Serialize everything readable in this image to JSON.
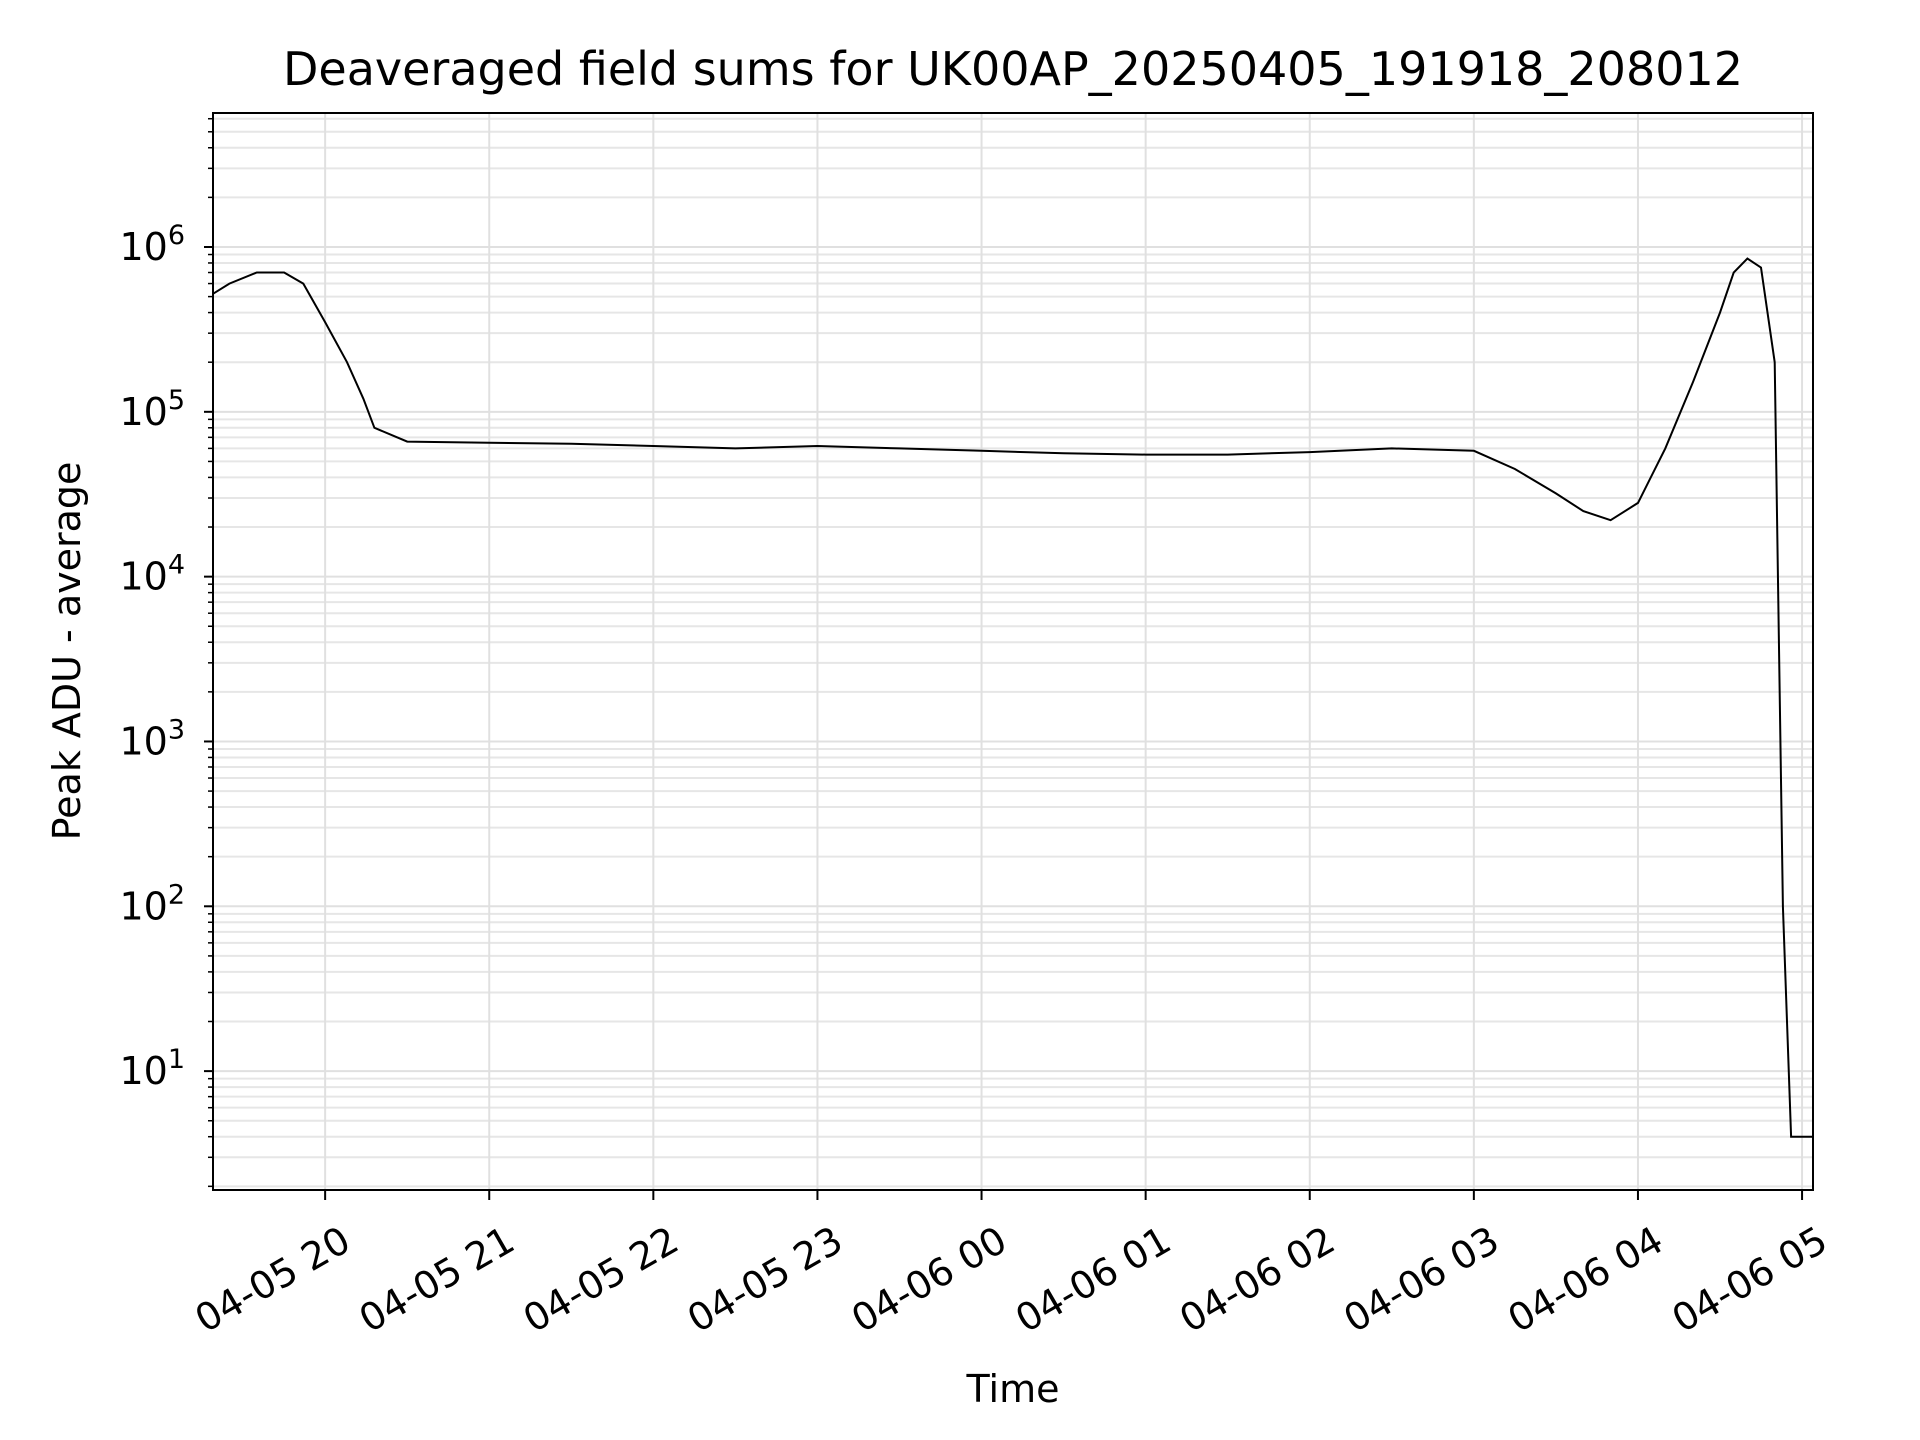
{
  "chart_data": {
    "type": "line",
    "title": "Deaveraged field sums for UK00AP_20250405_191918_208012",
    "xlabel": "Time",
    "ylabel": "Peak ADU - average",
    "xscale": "time",
    "yscale": "log",
    "xlim": [
      "2025-04-05 19:19",
      "2025-04-06 05:04"
    ],
    "ylim": [
      1.9,
      6500000
    ],
    "grid": true,
    "x_tick_labels": [
      "04-05 20",
      "04-05 21",
      "04-05 22",
      "04-05 23",
      "04-06 00",
      "04-06 01",
      "04-06 02",
      "04-06 03",
      "04-06 04",
      "04-06 05"
    ],
    "x_tick_values": [
      "2025-04-05 20:00",
      "2025-04-05 21:00",
      "2025-04-05 22:00",
      "2025-04-05 23:00",
      "2025-04-06 00:00",
      "2025-04-06 01:00",
      "2025-04-06 02:00",
      "2025-04-06 03:00",
      "2025-04-06 04:00",
      "2025-04-06 05:00"
    ],
    "y_tick_labels": [
      {
        "base": "10",
        "exp": "1"
      },
      {
        "base": "10",
        "exp": "2"
      },
      {
        "base": "10",
        "exp": "3"
      },
      {
        "base": "10",
        "exp": "4"
      },
      {
        "base": "10",
        "exp": "5"
      },
      {
        "base": "10",
        "exp": "6"
      }
    ],
    "y_tick_values": [
      10,
      100,
      1000,
      10000,
      100000,
      1000000
    ],
    "series": [
      {
        "color": "#000000",
        "x": [
          "2025-04-05 19:19",
          "2025-04-05 19:25",
          "2025-04-05 19:35",
          "2025-04-05 19:45",
          "2025-04-05 19:52",
          "2025-04-05 20:00",
          "2025-04-05 20:08",
          "2025-04-05 20:14",
          "2025-04-05 20:18",
          "2025-04-05 20:30",
          "2025-04-05 21:00",
          "2025-04-05 21:30",
          "2025-04-05 22:00",
          "2025-04-05 22:30",
          "2025-04-05 23:00",
          "2025-04-05 23:30",
          "2025-04-06 00:00",
          "2025-04-06 00:30",
          "2025-04-06 01:00",
          "2025-04-06 01:30",
          "2025-04-06 02:00",
          "2025-04-06 02:30",
          "2025-04-06 03:00",
          "2025-04-06 03:15",
          "2025-04-06 03:30",
          "2025-04-06 03:40",
          "2025-04-06 03:50",
          "2025-04-06 04:00",
          "2025-04-06 04:10",
          "2025-04-06 04:20",
          "2025-04-06 04:30",
          "2025-04-06 04:35",
          "2025-04-06 04:40",
          "2025-04-06 04:45",
          "2025-04-06 04:50",
          "2025-04-06 04:53",
          "2025-04-06 04:56",
          "2025-04-06 05:04"
        ],
        "y": [
          520000,
          600000,
          700000,
          700000,
          600000,
          350000,
          200000,
          120000,
          80000,
          66000,
          65000,
          64000,
          62000,
          60000,
          62000,
          60000,
          58000,
          56000,
          55000,
          55000,
          57000,
          60000,
          58000,
          45000,
          32000,
          25000,
          22000,
          28000,
          60000,
          150000,
          400000,
          700000,
          850000,
          750000,
          200000,
          100,
          4,
          4
        ]
      }
    ]
  }
}
